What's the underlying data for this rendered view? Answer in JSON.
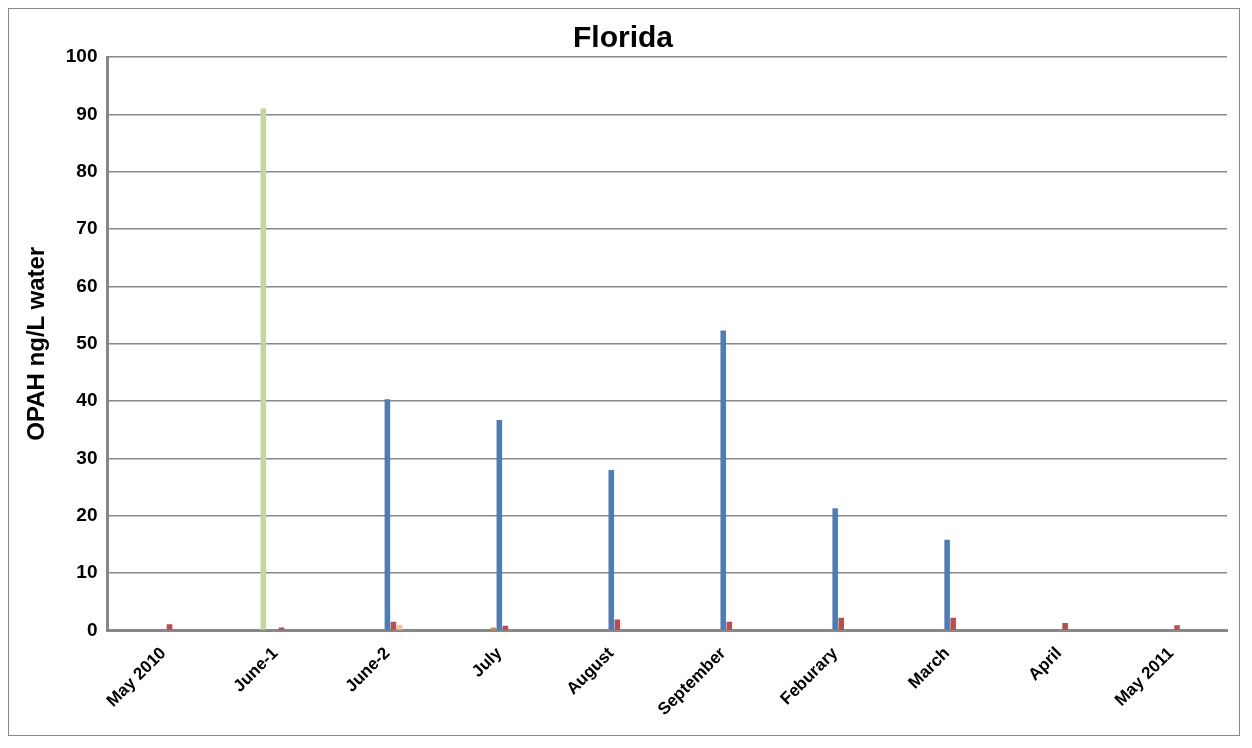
{
  "chart_data": {
    "type": "bar",
    "title": "Florida",
    "ylabel": "OPAH ng/L water",
    "categories": [
      "May 2010",
      "June-1",
      "June-2",
      "July",
      "August",
      "September",
      "Feburary",
      "March",
      "April",
      "May 2011"
    ],
    "series": [
      {
        "color": "#c3d69b",
        "values": [
          null,
          91,
          null,
          null,
          null,
          null,
          null,
          null,
          null,
          null
        ]
      },
      {
        "color": "#e08a3c",
        "values": [
          null,
          null,
          null,
          0.5,
          null,
          null,
          null,
          null,
          null,
          null
        ]
      },
      {
        "color": "#4a7ebb",
        "values": [
          null,
          null,
          40.3,
          36.7,
          28,
          52.3,
          21.3,
          15.8,
          null,
          null
        ]
      },
      {
        "color": "#be4b48",
        "values": [
          1.1,
          0.5,
          1.5,
          0.8,
          1.9,
          1.5,
          2.2,
          2.2,
          1.3,
          0.9
        ]
      },
      {
        "color": "#fac090",
        "values": [
          null,
          null,
          1.0,
          null,
          null,
          null,
          null,
          null,
          null,
          null
        ]
      }
    ],
    "ylim": [
      0,
      100
    ],
    "yticks": [
      0,
      10,
      20,
      30,
      40,
      50,
      60,
      70,
      80,
      90,
      100
    ],
    "grid": "y",
    "legend": false
  }
}
